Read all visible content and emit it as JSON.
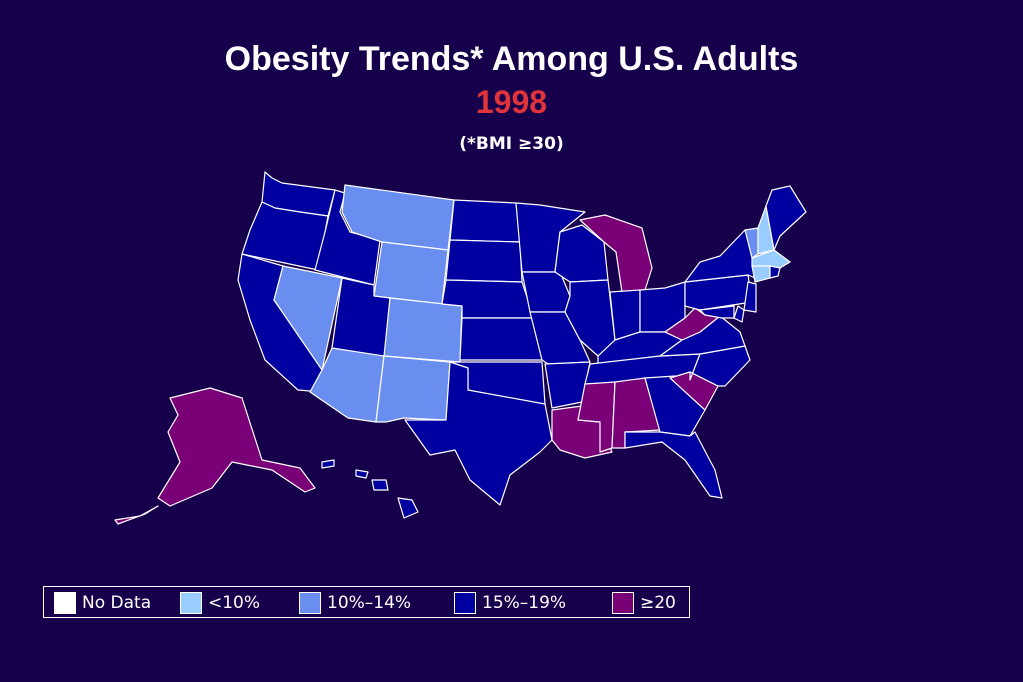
{
  "header": {
    "title": "Obesity Trends* Among U.S. Adults",
    "year": "1998",
    "subtitle": "(*BMI ≥30)"
  },
  "colors": {
    "background": "#17004b",
    "year_text": "#e0333a",
    "no_data": "#ffffff",
    "lt10": "#99ccff",
    "c10_14": "#6a8ef0",
    "c15_19": "#0000a0",
    "ge20": "#7a0077"
  },
  "legend": [
    {
      "key": "no_data",
      "label": "No Data"
    },
    {
      "key": "lt10",
      "label": "<10%"
    },
    {
      "key": "c10_14",
      "label": "10%–14%"
    },
    {
      "key": "c15_19",
      "label": "15%–19%"
    },
    {
      "key": "ge20",
      "label": "≥20"
    }
  ],
  "states": {
    "WA": "c15_19",
    "OR": "c15_19",
    "CA": "c15_19",
    "ID": "c15_19",
    "NV": "c10_14",
    "MT": "c10_14",
    "WY": "c10_14",
    "UT": "c15_19",
    "CO": "c10_14",
    "AZ": "c10_14",
    "NM": "c10_14",
    "ND": "c15_19",
    "SD": "c15_19",
    "NE": "c15_19",
    "KS": "c15_19",
    "OK": "c15_19",
    "TX": "c15_19",
    "MN": "c15_19",
    "IA": "c15_19",
    "MO": "c15_19",
    "AR": "c15_19",
    "LA": "ge20",
    "WI": "c15_19",
    "IL": "c15_19",
    "MI": "ge20",
    "IN": "c15_19",
    "OH": "c15_19",
    "KY": "c15_19",
    "TN": "c15_19",
    "MS": "ge20",
    "AL": "ge20",
    "GA": "c15_19",
    "FL": "c15_19",
    "SC": "ge20",
    "NC": "c15_19",
    "VA": "c15_19",
    "WV": "ge20",
    "PA": "c15_19",
    "NY": "c15_19",
    "VT": "c10_14",
    "NH": "lt10",
    "ME": "c15_19",
    "MA": "lt10",
    "CT": "lt10",
    "RI": "c15_19",
    "NJ": "c15_19",
    "DE": "c15_19",
    "MD": "c15_19",
    "AK": "ge20",
    "HI": "c15_19"
  }
}
